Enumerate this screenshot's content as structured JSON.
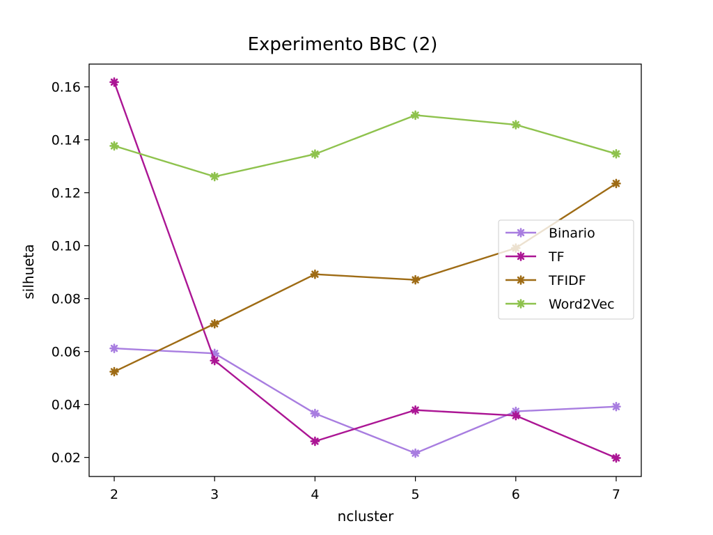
{
  "chart_data": {
    "type": "line",
    "title": "Experimento BBC (2)",
    "xlabel": "ncluster",
    "ylabel": "silhueta",
    "x": [
      2,
      3,
      4,
      5,
      6,
      7
    ],
    "xticks": [
      "2",
      "3",
      "4",
      "5",
      "6",
      "7"
    ],
    "xlim": [
      1.75,
      7.25
    ],
    "ylim": [
      0.0128,
      0.1686
    ],
    "yticks": [
      0.02,
      0.04,
      0.06,
      0.08,
      0.1,
      0.12,
      0.14,
      0.16
    ],
    "ytick_labels": [
      "0.02",
      "0.04",
      "0.06",
      "0.08",
      "0.10",
      "0.12",
      "0.14",
      "0.16"
    ],
    "grid": false,
    "legend_position": "center-right",
    "series": [
      {
        "name": "Binario",
        "color": "#a87de0",
        "values": [
          0.0612,
          0.0593,
          0.0366,
          0.0216,
          0.0374,
          0.0392
        ]
      },
      {
        "name": "TF",
        "color": "#ab1594",
        "values": [
          0.1618,
          0.0566,
          0.0261,
          0.0379,
          0.0358,
          0.0198
        ]
      },
      {
        "name": "TFIDF",
        "color": "#9e6b14",
        "values": [
          0.0524,
          0.0705,
          0.0892,
          0.0871,
          0.0991,
          0.1235
        ]
      },
      {
        "name": "Word2Vec",
        "color": "#8ec24d",
        "values": [
          0.1377,
          0.1261,
          0.1346,
          0.1493,
          0.1457,
          0.1347
        ]
      }
    ]
  }
}
